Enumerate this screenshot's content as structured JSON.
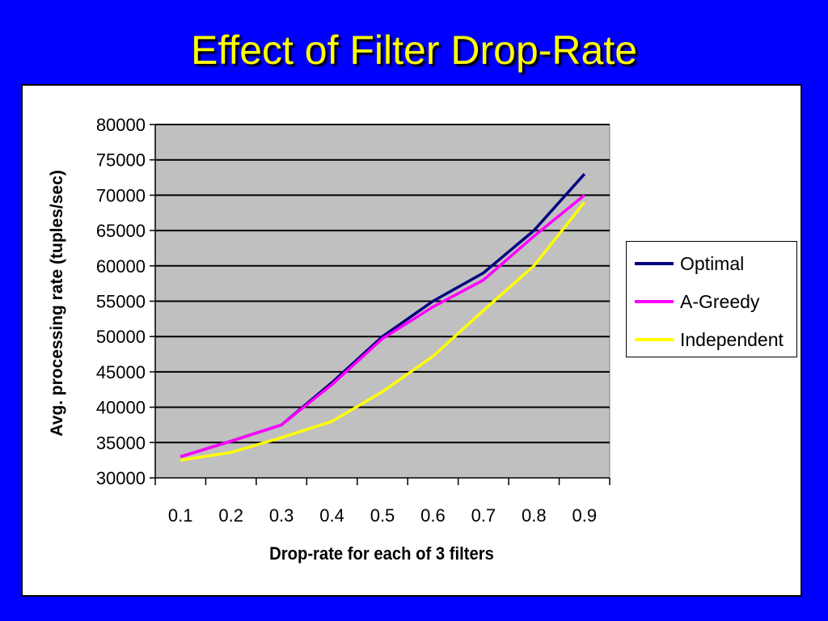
{
  "slide": {
    "title": "Effect of Filter Drop-Rate"
  },
  "chart_data": {
    "type": "line",
    "title": "",
    "xlabel": "Drop-rate for each of 3 filters",
    "ylabel": "Avg. processing rate (tuples/sec)",
    "categories": [
      "0.1",
      "0.2",
      "0.3",
      "0.4",
      "0.5",
      "0.6",
      "0.7",
      "0.8",
      "0.9"
    ],
    "ylim": [
      30000,
      80000
    ],
    "yticks": [
      "80000",
      "75000",
      "70000",
      "65000",
      "60000",
      "55000",
      "50000",
      "45000",
      "40000",
      "35000",
      "30000"
    ],
    "grid": true,
    "legend_position": "right",
    "plot_background": "#c0c0c0",
    "series": [
      {
        "name": "Optimal",
        "color": "#000080",
        "values": [
          33000,
          35200,
          37500,
          43500,
          50000,
          55000,
          59000,
          65000,
          73000
        ]
      },
      {
        "name": "A-Greedy",
        "color": "#ff00ff",
        "values": [
          33000,
          35200,
          37500,
          43200,
          49700,
          54200,
          58000,
          64200,
          70000
        ]
      },
      {
        "name": "Independent",
        "color": "#ffff00",
        "values": [
          32500,
          33600,
          35700,
          38000,
          42200,
          47200,
          53700,
          60000,
          69000
        ]
      }
    ]
  }
}
